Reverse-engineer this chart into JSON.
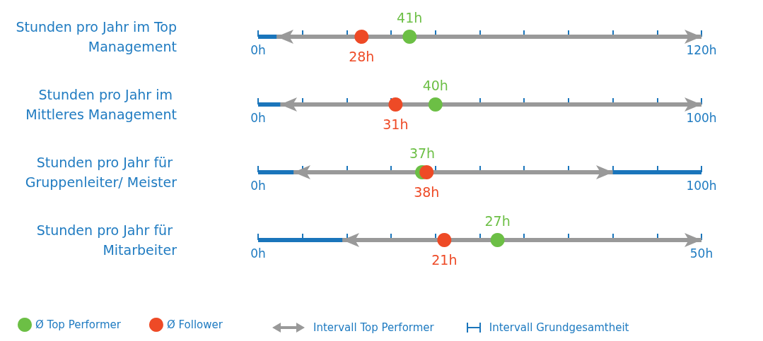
{
  "chart_data": [
    {
      "type": "scatter",
      "orientation": "horizontal",
      "categories": [
        "Stunden pro Jahr im Top Management"
      ],
      "xlim": [
        0,
        120
      ],
      "xticks": [
        {
          "value": 0,
          "label": "0h"
        },
        {
          "value": 12,
          "label": null
        },
        {
          "value": 24,
          "label": null
        },
        {
          "value": 36,
          "label": null
        },
        {
          "value": 48,
          "label": null
        },
        {
          "value": 60,
          "label": null
        },
        {
          "value": 72,
          "label": null
        },
        {
          "value": 84,
          "label": null
        },
        {
          "value": 96,
          "label": null
        },
        {
          "value": 108,
          "label": null
        },
        {
          "value": 120,
          "label": "120h"
        }
      ],
      "series": [
        {
          "color": "#6cbf45",
          "values": [
            41
          ],
          "value_labels": [
            "41h"
          ]
        },
        {
          "color": "#ee4a26",
          "values": [
            28
          ],
          "value_labels": [
            "28h"
          ]
        }
      ],
      "bands": [
        {
          "axis": "x",
          "from": 0,
          "to": 120,
          "color": "#1a75bb"
        },
        {
          "axis": "x",
          "from": 5,
          "to": 120,
          "color": "#999999"
        }
      ],
      "marker": "circle"
    },
    {
      "type": "scatter",
      "orientation": "horizontal",
      "categories": [
        "Stunden pro Jahr im Mittleres Management"
      ],
      "xlim": [
        0,
        100
      ],
      "xticks": [
        {
          "value": 0,
          "label": "0h"
        },
        {
          "value": 10,
          "label": null
        },
        {
          "value": 20,
          "label": null
        },
        {
          "value": 30,
          "label": null
        },
        {
          "value": 40,
          "label": null
        },
        {
          "value": 50,
          "label": null
        },
        {
          "value": 60,
          "label": null
        },
        {
          "value": 70,
          "label": null
        },
        {
          "value": 80,
          "label": null
        },
        {
          "value": 90,
          "label": null
        },
        {
          "value": 100,
          "label": "100h"
        }
      ],
      "series": [
        {
          "color": "#6cbf45",
          "values": [
            40
          ],
          "value_labels": [
            "40h"
          ]
        },
        {
          "color": "#ee4a26",
          "values": [
            31
          ],
          "value_labels": [
            "31h"
          ]
        }
      ],
      "bands": [
        {
          "axis": "x",
          "from": 0,
          "to": 100,
          "color": "#1a75bb"
        },
        {
          "axis": "x",
          "from": 5,
          "to": 100,
          "color": "#999999"
        }
      ],
      "marker": "circle"
    },
    {
      "type": "scatter",
      "orientation": "horizontal",
      "categories": [
        "Stunden pro Jahr für Gruppenleiter/ Meister"
      ],
      "xlim": [
        0,
        100
      ],
      "xticks": [
        {
          "value": 0,
          "label": "0h"
        },
        {
          "value": 10,
          "label": null
        },
        {
          "value": 20,
          "label": null
        },
        {
          "value": 30,
          "label": null
        },
        {
          "value": 40,
          "label": null
        },
        {
          "value": 50,
          "label": null
        },
        {
          "value": 60,
          "label": null
        },
        {
          "value": 70,
          "label": null
        },
        {
          "value": 80,
          "label": null
        },
        {
          "value": 90,
          "label": null
        },
        {
          "value": 100,
          "label": "100h"
        }
      ],
      "series": [
        {
          "color": "#6cbf45",
          "values": [
            37
          ],
          "value_labels": [
            "37h"
          ]
        },
        {
          "color": "#ee4a26",
          "values": [
            38
          ],
          "value_labels": [
            "38h"
          ]
        }
      ],
      "bands": [
        {
          "axis": "x",
          "from": 0,
          "to": 100,
          "color": "#1a75bb"
        },
        {
          "axis": "x",
          "from": 8,
          "to": 80,
          "color": "#999999"
        }
      ],
      "marker": "circle"
    },
    {
      "type": "scatter",
      "orientation": "horizontal",
      "categories": [
        "Stunden pro Jahr für Mitarbeiter"
      ],
      "xlim": [
        0,
        50
      ],
      "xticks": [
        {
          "value": 0,
          "label": "0h"
        },
        {
          "value": 5,
          "label": null
        },
        {
          "value": 10,
          "label": null
        },
        {
          "value": 15,
          "label": null
        },
        {
          "value": 20,
          "label": null
        },
        {
          "value": 25,
          "label": null
        },
        {
          "value": 30,
          "label": null
        },
        {
          "value": 35,
          "label": null
        },
        {
          "value": 40,
          "label": null
        },
        {
          "value": 45,
          "label": null
        },
        {
          "value": 50,
          "label": "50h"
        }
      ],
      "series": [
        {
          "name": "Ø Top Performer",
          "color": "#6cbf45",
          "values": [
            27
          ],
          "value_labels": [
            "27h"
          ]
        },
        {
          "name": "Ø Follower",
          "color": "#ee4a26",
          "values": [
            21
          ],
          "value_labels": [
            "21h"
          ]
        }
      ],
      "bands": [
        {
          "axis": "x",
          "from": 0,
          "to": 50,
          "label": "Intervall Grundgesamtheit",
          "color": "#1a75bb"
        },
        {
          "axis": "x",
          "from": 9.5,
          "to": 50,
          "label": "Intervall Top Performer",
          "color": "#999999"
        }
      ],
      "marker": "circle",
      "legend": "bottom left"
    }
  ]
}
